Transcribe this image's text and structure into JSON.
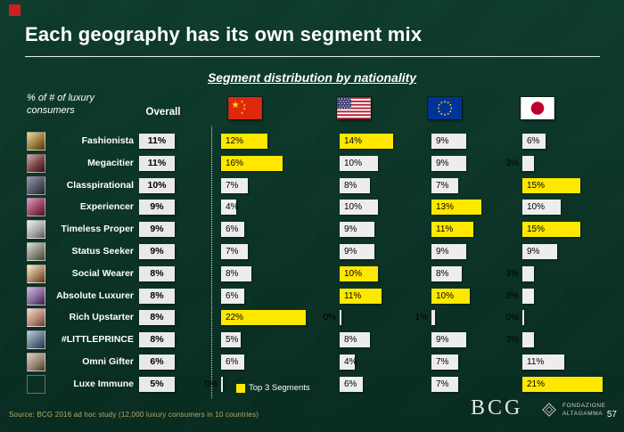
{
  "slide": {
    "title": "Each geography has its own segment mix",
    "subtitle": "Segment distribution by nationality",
    "y_axis_note": "% of # of luxury consumers",
    "overall_header": "Overall",
    "legend_label": "Top 3 Segments",
    "source": "Source: BCG 2016 ad hoc study (12,000 luxury consumers in 10 countries)",
    "page_number": "57",
    "accent_color": "#cf1f25",
    "highlight_color": "#ffe800",
    "bar_color": "#ededed",
    "logos": {
      "bcg": "BCG",
      "partner_line1": "Fondazione",
      "partner_line2": "Altagamma"
    }
  },
  "columns": [
    {
      "name": "China",
      "icon": "china-flag-icon"
    },
    {
      "name": "USA",
      "icon": "usa-flag-icon"
    },
    {
      "name": "EU",
      "icon": "eu-flag-icon"
    },
    {
      "name": "Japan",
      "icon": "japan-flag-icon"
    }
  ],
  "chart_data": {
    "type": "bar",
    "orientation": "horizontal",
    "title": "Segment distribution by nationality",
    "unit": "%",
    "categories": [
      "Fashionista",
      "Megacitier",
      "Classpirational",
      "Experiencer",
      "Timeless Proper",
      "Status Seeker",
      "Social Wearer",
      "Absolute Luxurer",
      "Rich Upstarter",
      "#LITTLEPRINCE",
      "Omni Gifter",
      "Luxe Immune"
    ],
    "series": [
      {
        "name": "Overall",
        "values": [
          11,
          11,
          10,
          9,
          9,
          9,
          8,
          8,
          8,
          8,
          6,
          5
        ]
      },
      {
        "name": "China",
        "values": [
          12,
          16,
          7,
          4,
          6,
          7,
          8,
          6,
          22,
          5,
          6,
          0
        ],
        "top3_indices": [
          0,
          1,
          8
        ]
      },
      {
        "name": "USA",
        "values": [
          14,
          10,
          8,
          10,
          9,
          9,
          10,
          11,
          0,
          8,
          4,
          6
        ],
        "top3_indices": [
          0,
          6,
          7
        ]
      },
      {
        "name": "EU",
        "values": [
          9,
          9,
          7,
          13,
          11,
          9,
          8,
          10,
          1,
          9,
          7,
          7
        ],
        "top3_indices": [
          3,
          4,
          7
        ]
      },
      {
        "name": "Japan",
        "values": [
          6,
          3,
          15,
          10,
          15,
          9,
          3,
          3,
          0,
          3,
          11,
          21
        ],
        "top3_indices": [
          2,
          4,
          11
        ]
      }
    ],
    "legend": [
      "Top 3 Segments"
    ],
    "highlight_rule": "Top 3 segments per nationality highlighted yellow"
  }
}
